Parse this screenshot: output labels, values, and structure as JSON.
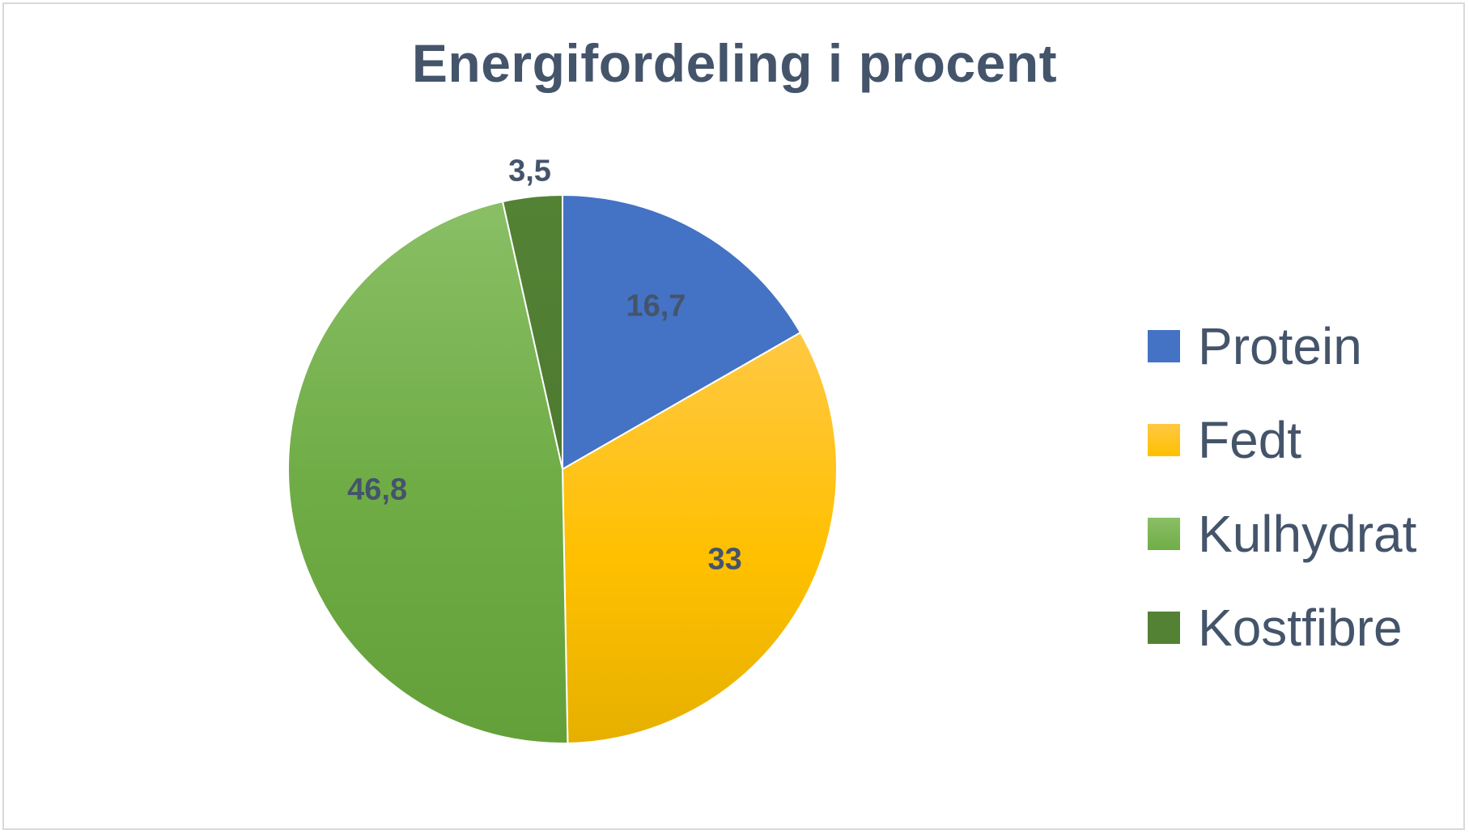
{
  "chart_data": {
    "type": "pie",
    "title": "Energifordeling i procent",
    "categories": [
      "Protein",
      "Fedt",
      "Kulhydrat",
      "Kostfibre"
    ],
    "values": [
      16.7,
      33,
      46.8,
      3.5
    ],
    "data_labels": [
      "16,7",
      "33",
      "46,8",
      "3,5"
    ],
    "colors": [
      "#4472c4",
      "#ffc000",
      "#70ad47",
      "#548235"
    ],
    "legend_position": "right",
    "start_angle": "top",
    "direction": "clockwise"
  }
}
